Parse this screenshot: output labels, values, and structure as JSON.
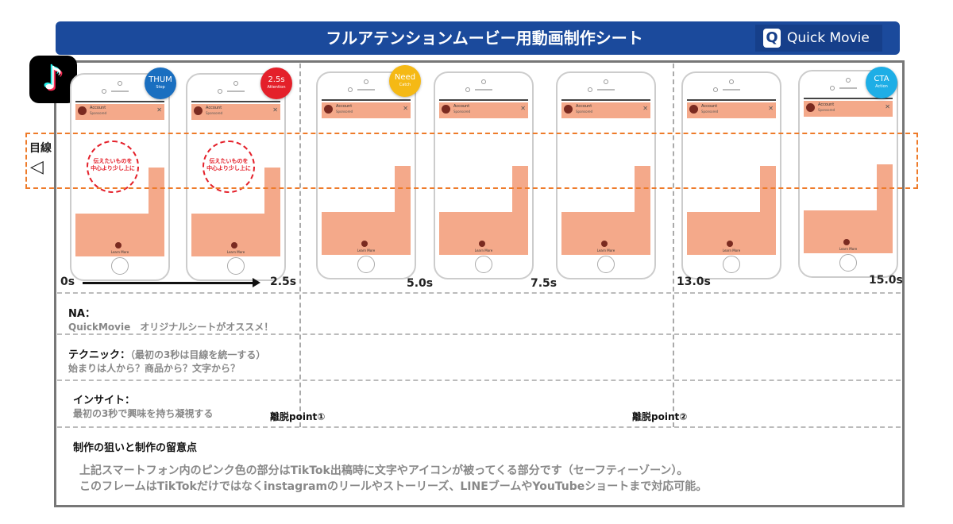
{
  "header": {
    "title": "フルアテンションムービー用動画制作シート",
    "logo_text": "Quick Movie",
    "logo_mark": "Q"
  },
  "tiktok_logo": "♪",
  "eye": {
    "label": "目線",
    "icon": "eye-icon"
  },
  "phone_ui": {
    "account": "Account",
    "sponsored": "Sponsored",
    "close": "✕",
    "learn_more": "Learn More"
  },
  "circle_note": "伝えたいものを\n中心より少し上に",
  "phones": [
    {
      "badge": "THUM",
      "badge_sub": "Stop",
      "color": "#1a6fc0",
      "circle": true
    },
    {
      "badge": "2.5s",
      "badge_sub": "Attention",
      "color": "#e4202a",
      "circle": true
    },
    {
      "badge": "Need",
      "badge_sub": "Catch",
      "color": "#f5b915",
      "circle": false
    },
    {
      "badge": "",
      "badge_sub": "",
      "color": "",
      "circle": false
    },
    {
      "badge": "",
      "badge_sub": "",
      "color": "",
      "circle": false
    },
    {
      "badge": "",
      "badge_sub": "",
      "color": "",
      "circle": false
    },
    {
      "badge": "CTA",
      "badge_sub": "Action",
      "color": "#1eaee6",
      "circle": false
    }
  ],
  "timeline": {
    "t0": "0s",
    "t1": "2.5s",
    "t2": "5.0s",
    "t3": "7.5s",
    "t4": "13.0s",
    "t5": "15.0s"
  },
  "sections": {
    "na": {
      "title": "NA：",
      "body": "QuickMovie　オリジナルシートがオススメ！"
    },
    "technique": {
      "title": "テクニック：",
      "note": "（最初の3秒は目線を統一する）",
      "body": "始まりは人から？商品から？文字から？"
    },
    "insight": {
      "title": "インサイト：",
      "body": "最初の3秒で興味を持ち凝視する"
    },
    "dropoff1": "離脱point①",
    "dropoff2": "離脱point②",
    "aim": {
      "title": "制作の狙いと制作の留意点",
      "line1": "上記スマートフォン内のピンク色の部分はTikTok出稿時に文字やアイコンが被ってくる部分です（セーフティーゾーン）。",
      "line2": "このフレームはTikTokだけではなくinstagramのリールやストーリーズ、LINEブームやYouTubeショートまで対応可能。"
    }
  }
}
